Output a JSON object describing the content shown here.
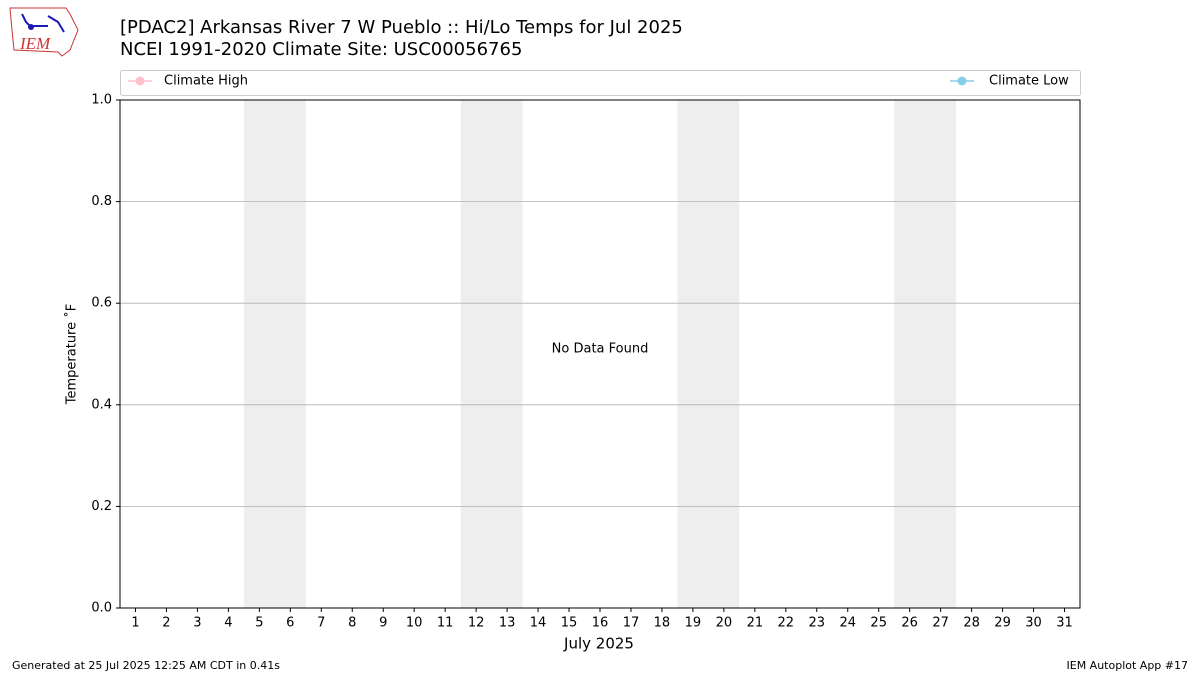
{
  "logo_text": "IEM",
  "chart_data": {
    "type": "line",
    "title": "[PDAC2] Arkansas River 7 W Pueblo :: Hi/Lo Temps for Jul 2025",
    "subtitle": "NCEI 1991-2020 Climate Site: USC00056765",
    "x_label": "July 2025",
    "y_label": "Temperature ˚F",
    "annotation": "No Data Found",
    "series": [
      {
        "name": "Climate High",
        "color": "#ffc0cb",
        "values": []
      },
      {
        "name": "Climate Low",
        "color": "#87ceeb",
        "values": []
      }
    ],
    "xlim": [
      0.5,
      31.5
    ],
    "xticks": [
      1,
      2,
      3,
      4,
      5,
      6,
      7,
      8,
      9,
      10,
      11,
      12,
      13,
      14,
      15,
      16,
      17,
      18,
      19,
      20,
      21,
      22,
      23,
      24,
      25,
      26,
      27,
      28,
      29,
      30,
      31
    ],
    "ylim": [
      0,
      1
    ],
    "yticks": [
      {
        "value": 0,
        "label": "0.0"
      },
      {
        "value": 0.2,
        "label": "0.2"
      },
      {
        "value": 0.4,
        "label": "0.4"
      },
      {
        "value": 0.6,
        "label": "0.6"
      },
      {
        "value": 0.8,
        "label": "0.8"
      },
      {
        "value": 1,
        "label": "1.0"
      }
    ],
    "shaded_spans": [
      [
        4.5,
        6.5
      ],
      [
        11.5,
        13.5
      ],
      [
        18.5,
        20.5
      ],
      [
        25.5,
        27.5
      ]
    ],
    "grid": true,
    "footer_left": "Generated at 25 Jul 2025 12:25 AM CDT in 0.41s",
    "footer_right": "IEM Autoplot App #17"
  }
}
